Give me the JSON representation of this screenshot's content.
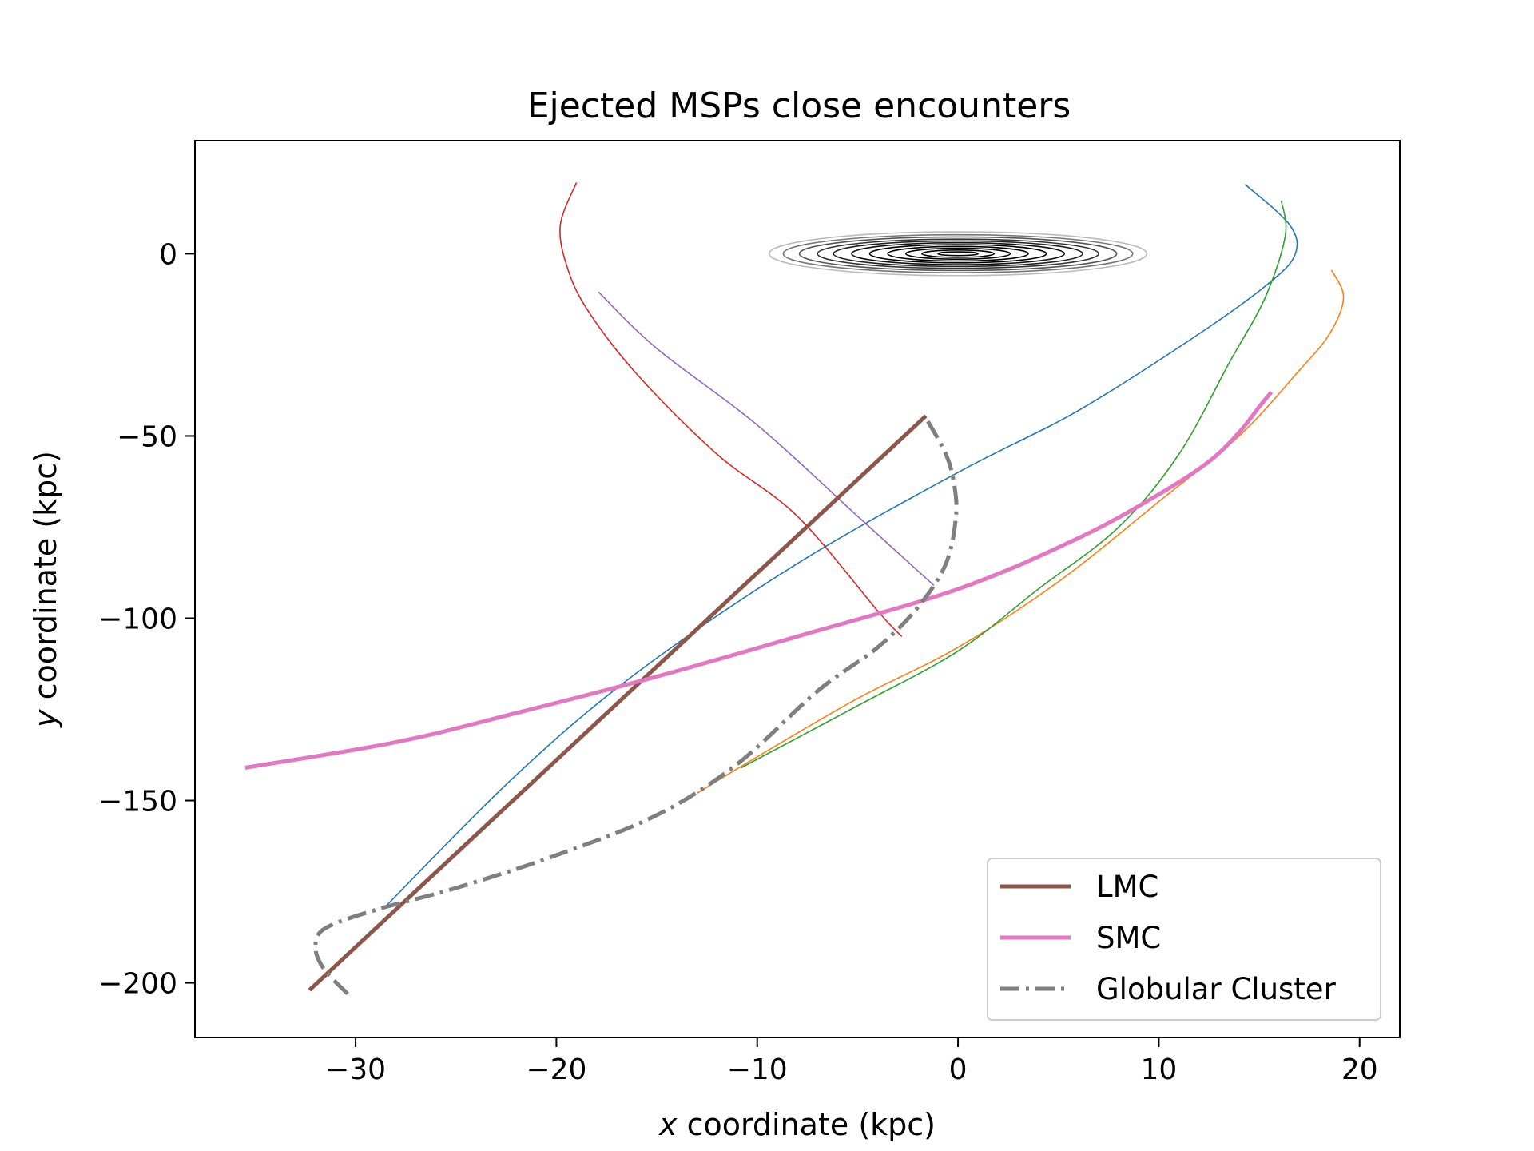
{
  "chart_data": {
    "type": "line",
    "title": "Ejected MSPs close encounters",
    "xlabel_var": "x",
    "xlabel_rest": " coordinate (kpc)",
    "ylabel_var": "y",
    "ylabel_rest": " coordinate (kpc)",
    "xlim": [
      -38,
      22
    ],
    "ylim": [
      -215,
      31
    ],
    "xticks": [
      -30,
      -20,
      -10,
      0,
      10,
      20
    ],
    "yticks": [
      0,
      -50,
      -100,
      -150,
      -200
    ],
    "xtick_labels": [
      "−30",
      "−20",
      "−10",
      "0",
      "10",
      "20"
    ],
    "ytick_labels": [
      "0",
      "−50",
      "−100",
      "−150",
      "−200"
    ],
    "grid": false,
    "legend_placement": "lower-right",
    "series": [
      {
        "name": "LMC",
        "color": "#8c564b",
        "style": "solid",
        "width": "thick",
        "points": [
          [
            -1.6,
            -44.5
          ],
          [
            -32.3,
            -202
          ]
        ]
      },
      {
        "name": "SMC",
        "color": "#e377c2",
        "style": "solid",
        "width": "thick",
        "points": [
          [
            15.6,
            -38
          ],
          [
            15,
            -42
          ],
          [
            14,
            -49
          ],
          [
            12.5,
            -57
          ],
          [
            10,
            -66
          ],
          [
            6,
            -78
          ],
          [
            0,
            -92
          ],
          [
            -8,
            -105
          ],
          [
            -15,
            -116
          ],
          [
            -22,
            -126
          ],
          [
            -28,
            -134
          ],
          [
            -35.5,
            -141
          ]
        ]
      },
      {
        "name": "Globular Cluster",
        "color": "#7f7f7f",
        "style": "dashdot",
        "width": "thick",
        "points": [
          [
            -1.5,
            -46
          ],
          [
            -0.6,
            -55
          ],
          [
            -0.2,
            -63
          ],
          [
            -0.1,
            -72
          ],
          [
            -0.6,
            -85
          ],
          [
            -2,
            -97
          ],
          [
            -4,
            -108
          ],
          [
            -7,
            -120
          ],
          [
            -11,
            -140
          ],
          [
            -15,
            -154
          ],
          [
            -20,
            -165
          ],
          [
            -25,
            -174
          ],
          [
            -29,
            -180
          ],
          [
            -31.5,
            -185
          ],
          [
            -32,
            -190
          ],
          [
            -31.6,
            -196
          ],
          [
            -30.4,
            -203
          ]
        ]
      },
      {
        "color": "#1f77b4",
        "style": "solid",
        "width": "thin",
        "points": [
          [
            14.3,
            19
          ],
          [
            16.5,
            8
          ],
          [
            16.8,
            0
          ],
          [
            15.5,
            -8
          ],
          [
            12,
            -22
          ],
          [
            6,
            -43
          ],
          [
            0,
            -60
          ],
          [
            -8,
            -85
          ],
          [
            -16,
            -115
          ],
          [
            -22,
            -143
          ],
          [
            -28.5,
            -179
          ]
        ]
      },
      {
        "color": "#ff7f0e",
        "style": "solid",
        "width": "thin",
        "points": [
          [
            18.6,
            -4.5
          ],
          [
            19.2,
            -12
          ],
          [
            18.5,
            -22
          ],
          [
            17,
            -32
          ],
          [
            14,
            -50
          ],
          [
            10,
            -68
          ],
          [
            5,
            -90
          ],
          [
            0,
            -108
          ],
          [
            -5,
            -122
          ],
          [
            -10,
            -138
          ],
          [
            -13,
            -148
          ]
        ]
      },
      {
        "color": "#2ca02c",
        "style": "solid",
        "width": "thin",
        "points": [
          [
            16.1,
            14.5
          ],
          [
            16.3,
            5
          ],
          [
            15.3,
            -12
          ],
          [
            13.5,
            -30
          ],
          [
            11,
            -55
          ],
          [
            8,
            -75
          ],
          [
            4,
            -92
          ],
          [
            0,
            -109
          ],
          [
            -5,
            -124
          ],
          [
            -10.8,
            -141
          ]
        ]
      },
      {
        "color": "#d62728",
        "style": "solid",
        "width": "thin",
        "points": [
          [
            -19,
            19.5
          ],
          [
            -19.8,
            8
          ],
          [
            -19.5,
            -3
          ],
          [
            -18.5,
            -15
          ],
          [
            -16,
            -33
          ],
          [
            -12,
            -55
          ],
          [
            -8,
            -72
          ],
          [
            -4,
            -98
          ],
          [
            -2.8,
            -105
          ]
        ]
      },
      {
        "color": "#9467bd",
        "style": "solid",
        "width": "thin",
        "points": [
          [
            -17.9,
            -10.5
          ],
          [
            -15,
            -26
          ],
          [
            -10,
            -47
          ],
          [
            -5,
            -72
          ],
          [
            -1.2,
            -91
          ]
        ]
      }
    ],
    "contours": {
      "center": [
        0,
        0
      ],
      "levels": [
        {
          "rx": 1.0,
          "ry": 0.5,
          "color": "#000000"
        },
        {
          "rx": 1.8,
          "ry": 1.0,
          "color": "#000000"
        },
        {
          "rx": 2.6,
          "ry": 1.5,
          "color": "#000000"
        },
        {
          "rx": 3.5,
          "ry": 2.0,
          "color": "#000000"
        },
        {
          "rx": 4.4,
          "ry": 2.5,
          "color": "#000000"
        },
        {
          "rx": 5.3,
          "ry": 3.0,
          "color": "#111111"
        },
        {
          "rx": 6.2,
          "ry": 3.5,
          "color": "#222222"
        },
        {
          "rx": 7.0,
          "ry": 4.0,
          "color": "#333333"
        },
        {
          "rx": 7.9,
          "ry": 4.6,
          "color": "#555555"
        },
        {
          "rx": 8.7,
          "ry": 5.2,
          "color": "#777777"
        },
        {
          "rx": 9.4,
          "ry": 6.0,
          "color": "#bbbbbb"
        }
      ]
    }
  }
}
